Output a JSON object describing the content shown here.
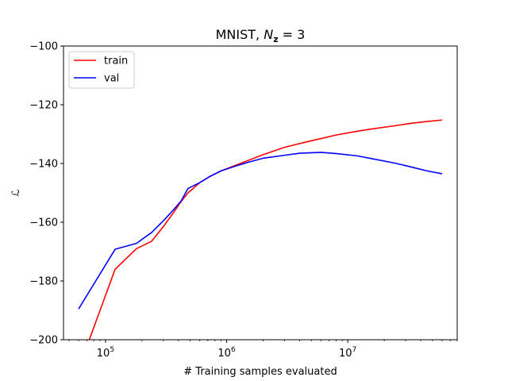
{
  "chart_data": {
    "type": "line",
    "title": "MNIST, N_z = 3",
    "title_parts": {
      "prefix": "MNIST, ",
      "var": "N",
      "sub": "z",
      "suffix": " = 3"
    },
    "xlabel": "# Training samples evaluated",
    "ylabel": "ℒ",
    "xscale": "log",
    "xlim": [
      45000,
      80000000
    ],
    "ylim": [
      -200,
      -100
    ],
    "yticks": [
      -200,
      -180,
      -160,
      -140,
      -120,
      -100
    ],
    "ytick_labels": [
      "−200",
      "−180",
      "−160",
      "−140",
      "−120",
      "−100"
    ],
    "xticks": [
      100000,
      1000000,
      10000000
    ],
    "xtick_labels": [
      {
        "base": "10",
        "exp": "5"
      },
      {
        "base": "10",
        "exp": "6"
      },
      {
        "base": "10",
        "exp": "7"
      }
    ],
    "grid": false,
    "legend": {
      "position": "top-left",
      "entries": [
        "train",
        "val"
      ]
    },
    "series": [
      {
        "name": "train",
        "color": "#ff0000",
        "points": [
          [
            60000,
            -210
          ],
          [
            75000,
            -199
          ],
          [
            120000,
            -176
          ],
          [
            180000,
            -169
          ],
          [
            240000,
            -166.5
          ],
          [
            300000,
            -161.5
          ],
          [
            360000,
            -157
          ],
          [
            420000,
            -153
          ],
          [
            480000,
            -150
          ],
          [
            600000,
            -146.5
          ],
          [
            720000,
            -144.5
          ],
          [
            900000,
            -142.5
          ],
          [
            1200000,
            -140.5
          ],
          [
            1500000,
            -139
          ],
          [
            2000000,
            -137
          ],
          [
            3000000,
            -134.5
          ],
          [
            4000000,
            -133.2
          ],
          [
            6000000,
            -131.5
          ],
          [
            8000000,
            -130.3
          ],
          [
            12000000,
            -129
          ],
          [
            16000000,
            -128.2
          ],
          [
            24000000,
            -127.2
          ],
          [
            32000000,
            -126.4
          ],
          [
            45000000,
            -125.7
          ],
          [
            60000000,
            -125.2
          ]
        ]
      },
      {
        "name": "val",
        "color": "#0000ff",
        "points": [
          [
            60000,
            -189.5
          ],
          [
            120000,
            -169.2
          ],
          [
            180000,
            -167.2
          ],
          [
            240000,
            -163.5
          ],
          [
            300000,
            -159.5
          ],
          [
            360000,
            -156
          ],
          [
            420000,
            -152.8
          ],
          [
            480000,
            -148.5
          ],
          [
            600000,
            -146.5
          ],
          [
            720000,
            -144.5
          ],
          [
            900000,
            -142.5
          ],
          [
            1200000,
            -140.8
          ],
          [
            1500000,
            -139.6
          ],
          [
            2000000,
            -138.2
          ],
          [
            3000000,
            -137.2
          ],
          [
            4000000,
            -136.5
          ],
          [
            6000000,
            -136.2
          ],
          [
            8000000,
            -136.6
          ],
          [
            12000000,
            -137.4
          ],
          [
            16000000,
            -138.4
          ],
          [
            24000000,
            -139.8
          ],
          [
            32000000,
            -141
          ],
          [
            45000000,
            -142.5
          ],
          [
            60000000,
            -143.5
          ]
        ]
      }
    ]
  }
}
